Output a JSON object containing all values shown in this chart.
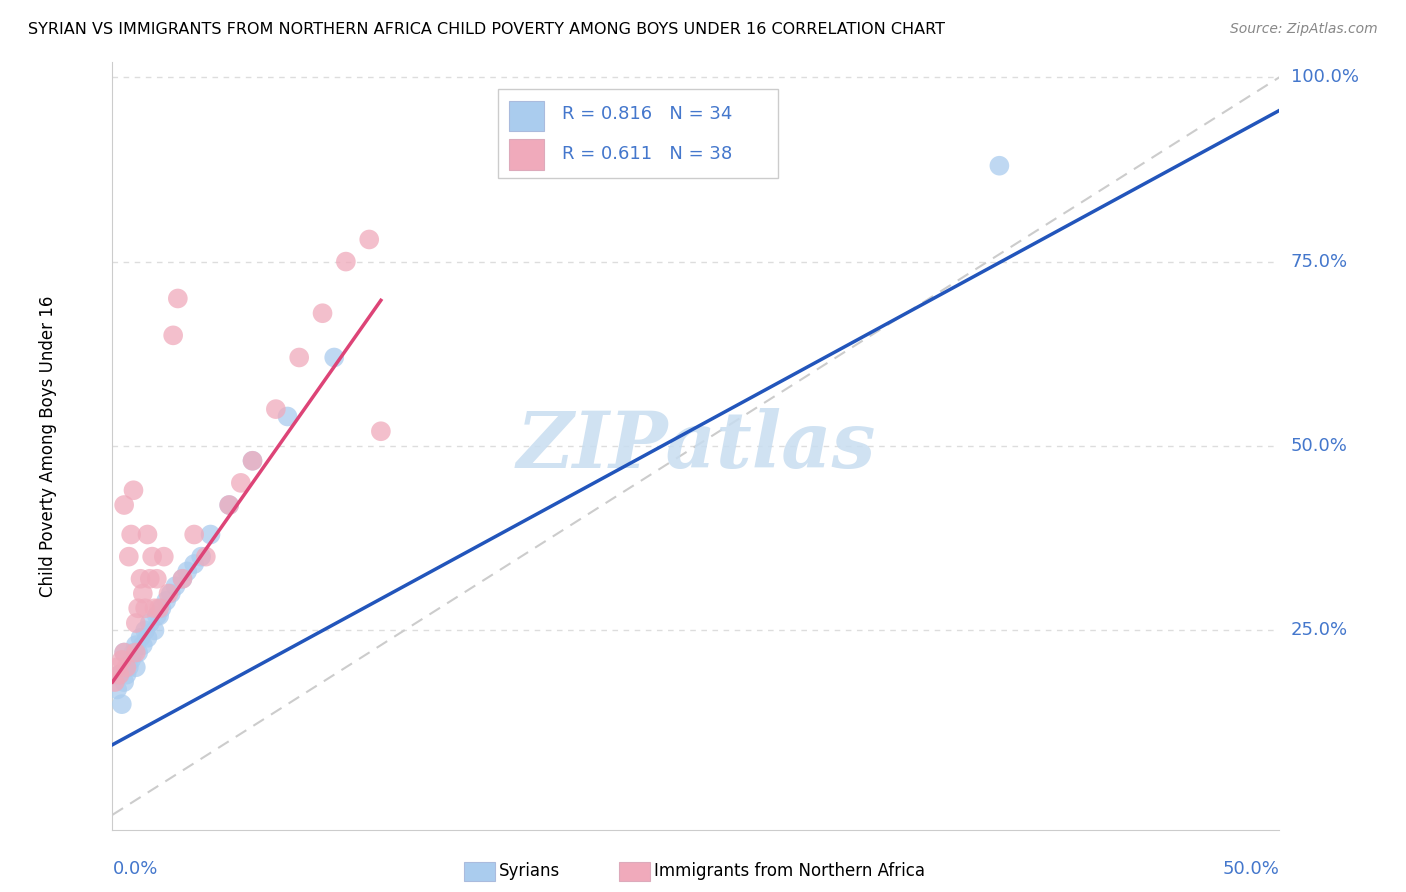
{
  "title": "SYRIAN VS IMMIGRANTS FROM NORTHERN AFRICA CHILD POVERTY AMONG BOYS UNDER 16 CORRELATION CHART",
  "source": "Source: ZipAtlas.com",
  "ylabel": "Child Poverty Among Boys Under 16",
  "blue_color": "#aaccee",
  "pink_color": "#f0aabb",
  "blue_line_color": "#2255bb",
  "pink_line_color": "#dd4477",
  "ref_line_color": "#cccccc",
  "grid_color": "#dddddd",
  "label_color": "#4477cc",
  "watermark_color": "#c8ddf0",
  "xlim": [
    0.0,
    0.5
  ],
  "ylim": [
    0.0,
    1.0
  ],
  "yticks": [
    0.25,
    0.5,
    0.75,
    1.0
  ],
  "ytick_labels": [
    "25.0%",
    "50.0%",
    "75.0%",
    "100.0%"
  ],
  "legend_r_blue": "R = 0.816",
  "legend_n_blue": "N = 34",
  "legend_r_pink": "R = 0.611",
  "legend_n_pink": "N = 38",
  "blue_intercept": 0.095,
  "blue_slope": 1.72,
  "pink_intercept": 0.18,
  "pink_slope": 4.5,
  "pink_line_xmax": 0.115,
  "blue_scatter_x": [
    0.002,
    0.003,
    0.004,
    0.005,
    0.005,
    0.006,
    0.007,
    0.008,
    0.009,
    0.01,
    0.01,
    0.011,
    0.012,
    0.013,
    0.014,
    0.015,
    0.016,
    0.018,
    0.019,
    0.02,
    0.021,
    0.023,
    0.025,
    0.027,
    0.03,
    0.032,
    0.035,
    0.038,
    0.042,
    0.05,
    0.06,
    0.075,
    0.095,
    0.38
  ],
  "blue_scatter_y": [
    0.17,
    0.19,
    0.15,
    0.18,
    0.22,
    0.19,
    0.2,
    0.21,
    0.22,
    0.2,
    0.23,
    0.22,
    0.24,
    0.23,
    0.25,
    0.24,
    0.26,
    0.25,
    0.27,
    0.27,
    0.28,
    0.29,
    0.3,
    0.31,
    0.32,
    0.33,
    0.34,
    0.35,
    0.38,
    0.42,
    0.48,
    0.54,
    0.62,
    0.88
  ],
  "pink_scatter_x": [
    0.001,
    0.002,
    0.003,
    0.004,
    0.005,
    0.005,
    0.006,
    0.007,
    0.008,
    0.009,
    0.01,
    0.01,
    0.011,
    0.012,
    0.013,
    0.014,
    0.015,
    0.016,
    0.017,
    0.018,
    0.019,
    0.02,
    0.022,
    0.024,
    0.026,
    0.028,
    0.03,
    0.035,
    0.04,
    0.05,
    0.055,
    0.06,
    0.07,
    0.08,
    0.09,
    0.1,
    0.11,
    0.115
  ],
  "pink_scatter_y": [
    0.18,
    0.2,
    0.19,
    0.21,
    0.22,
    0.42,
    0.2,
    0.35,
    0.38,
    0.44,
    0.22,
    0.26,
    0.28,
    0.32,
    0.3,
    0.28,
    0.38,
    0.32,
    0.35,
    0.28,
    0.32,
    0.28,
    0.35,
    0.3,
    0.65,
    0.7,
    0.32,
    0.38,
    0.35,
    0.42,
    0.45,
    0.48,
    0.55,
    0.62,
    0.68,
    0.75,
    0.78,
    0.52
  ]
}
